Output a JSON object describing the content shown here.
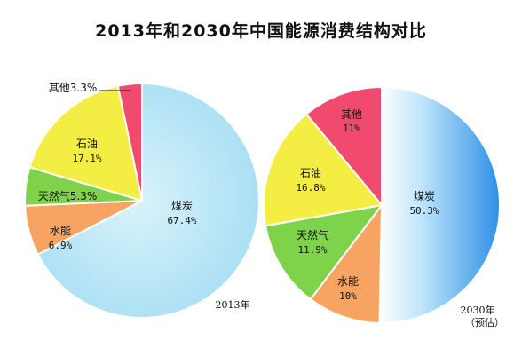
{
  "chart_data": {
    "title": "2013年和2030年中国能源消费结构对比",
    "charts": [
      {
        "type": "pie",
        "caption": "2013年",
        "caption_sub": "",
        "slices": [
          {
            "name": "煤炭",
            "value": 67.4,
            "display": "67.4%",
            "color": "#aee3f5"
          },
          {
            "name": "水能",
            "value": 6.9,
            "display": "6.9%",
            "color": "#f7a463"
          },
          {
            "name": "天然气",
            "value": 5.3,
            "display": "5.3%",
            "color": "#7fd34a"
          },
          {
            "name": "石油",
            "value": 17.1,
            "display": "17.1%",
            "color": "#f4ee44"
          },
          {
            "name": "其他",
            "value": 3.3,
            "display": "3.3%",
            "color": "#f04b6e"
          }
        ]
      },
      {
        "type": "pie",
        "caption": "2030年",
        "caption_sub": "（预估）",
        "slices": [
          {
            "name": "煤炭",
            "value": 50.3,
            "display": "50.3%",
            "color": "#55b6ef"
          },
          {
            "name": "水能",
            "value": 10,
            "display": "10%",
            "color": "#f7a463"
          },
          {
            "name": "天然气",
            "value": 11.9,
            "display": "11.9%",
            "color": "#7fd34a"
          },
          {
            "name": "石油",
            "value": 16.8,
            "display": "16.8%",
            "color": "#f4ee44"
          },
          {
            "name": "其他",
            "value": 11,
            "display": "11%",
            "color": "#f04b6e"
          }
        ]
      }
    ]
  }
}
